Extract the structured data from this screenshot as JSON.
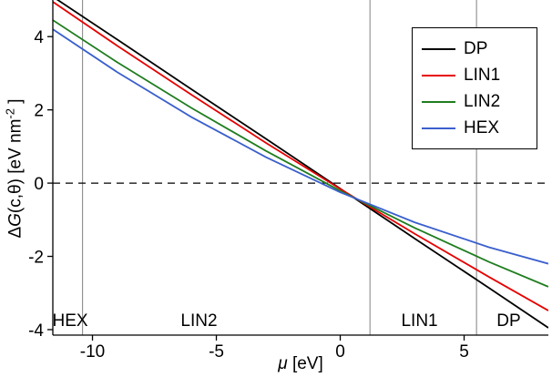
{
  "figure": {
    "xlabel": {
      "symbol": "μ",
      "unit": " [eV]"
    },
    "ylabel": {
      "delta": "Δ",
      "symbol": "G",
      "args": "(c,θ)",
      "unit_pre": " [eV nm",
      "unit_sup": "-2",
      "unit_post": " ]"
    }
  },
  "chart_data": {
    "type": "line",
    "title": "",
    "xlabel": "μ [eV]",
    "ylabel": "ΔG(c,θ) [eV nm^-2]",
    "xlim": [
      -11.6,
      8.4
    ],
    "ylim": [
      -4.15,
      4.95
    ],
    "xticks": [
      -10,
      -5,
      0,
      5
    ],
    "yticks": [
      -4,
      -2,
      0,
      2,
      4
    ],
    "grid": false,
    "zero_line_y": 0,
    "phase_boundaries": [
      -10.4,
      1.2,
      5.5
    ],
    "region_labels": [
      {
        "text": "HEX",
        "x": -10.9
      },
      {
        "text": "LIN2",
        "x": -5.7
      },
      {
        "text": "LIN1",
        "x": 3.2
      },
      {
        "text": "DP",
        "x": 6.8
      }
    ],
    "x": [
      -11.6,
      -9,
      -6,
      -3,
      0,
      3,
      6,
      8.4
    ],
    "series": [
      {
        "name": "DP",
        "color": "#000000",
        "values": [
          5.09,
          3.92,
          2.56,
          1.21,
          -0.15,
          -1.51,
          -2.86,
          -3.95
        ]
      },
      {
        "name": "LIN1",
        "color": "#e60000",
        "values": [
          4.95,
          3.75,
          2.41,
          1.1,
          -0.16,
          -1.38,
          -2.56,
          -3.48
        ]
      },
      {
        "name": "LIN2",
        "color": "#1f7d1f",
        "values": [
          4.45,
          3.3,
          2.05,
          0.88,
          -0.21,
          -1.22,
          -2.15,
          -2.83
        ]
      },
      {
        "name": "HEX",
        "color": "#3a5fcd",
        "values": [
          4.2,
          3.03,
          1.8,
          0.71,
          -0.25,
          -1.07,
          -1.75,
          -2.2
        ]
      }
    ],
    "legend": {
      "position": "top-right",
      "entries": [
        "DP",
        "LIN1",
        "LIN2",
        "HEX"
      ]
    }
  }
}
